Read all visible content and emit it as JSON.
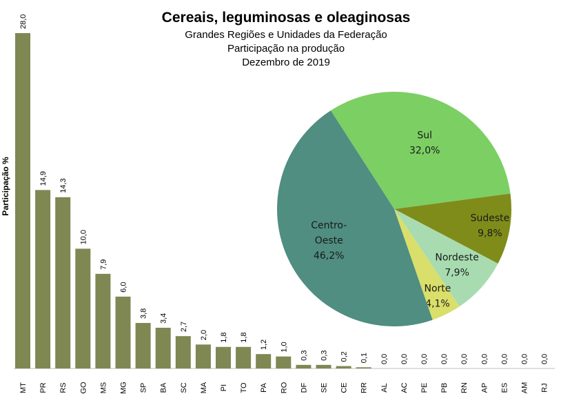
{
  "chart_data": [
    {
      "type": "bar",
      "title": "Cereais, leguminosas e oleaginosas",
      "subtitles": [
        "Grandes Regiões e Unidades da Federação",
        "Participação na produção",
        "Dezembro de 2019"
      ],
      "ylabel": "Participação %",
      "xlabel": "",
      "ylim": [
        0,
        28
      ],
      "grid": false,
      "color": "#7f8753",
      "categories": [
        "MT",
        "PR",
        "RS",
        "GO",
        "MS",
        "MG",
        "SP",
        "BA",
        "SC",
        "MA",
        "PI",
        "TO",
        "PA",
        "RO",
        "DF",
        "SE",
        "CE",
        "RR",
        "AL",
        "AC",
        "PE",
        "PB",
        "RN",
        "AP",
        "ES",
        "AM",
        "RJ"
      ],
      "values": [
        28.0,
        14.9,
        14.3,
        10.0,
        7.9,
        6.0,
        3.8,
        3.4,
        2.7,
        2.0,
        1.8,
        1.8,
        1.2,
        1.0,
        0.3,
        0.3,
        0.2,
        0.1,
        0.0,
        0.0,
        0.0,
        0.0,
        0.0,
        0.0,
        0.0,
        0.0,
        0.0
      ],
      "data_labels": [
        "28,0",
        "14,9",
        "14,3",
        "10,0",
        "7,9",
        "6,0",
        "3,8",
        "3,4",
        "2,7",
        "2,0",
        "1,8",
        "1,8",
        "1,2",
        "1,0",
        "0,3",
        "0,3",
        "0,2",
        "0,1",
        "0,0",
        "0,0",
        "0,0",
        "0,0",
        "0,0",
        "0,0",
        "0,0",
        "0,0",
        "0,0"
      ]
    },
    {
      "type": "pie",
      "slices": [
        {
          "name": "Sul",
          "value": 32.0,
          "label": "32,0%",
          "color": "#7ccf63"
        },
        {
          "name": "Sudeste",
          "value": 9.8,
          "label": "9,8%",
          "color": "#7f8c1a"
        },
        {
          "name": "Nordeste",
          "value": 7.9,
          "label": "7,9%",
          "color": "#a8dcb0"
        },
        {
          "name": "Norte",
          "value": 4.1,
          "label": "4,1%",
          "color": "#d9df6a"
        },
        {
          "name": "Centro-Oeste",
          "value": 46.2,
          "label": "46,2%",
          "color": "#4f8e80"
        }
      ]
    }
  ]
}
